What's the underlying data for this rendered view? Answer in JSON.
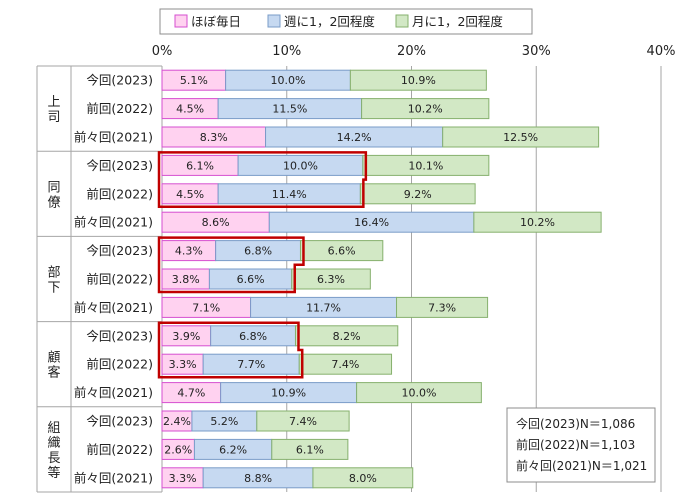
{
  "chart_data": {
    "type": "bar",
    "orientation": "horizontal",
    "stacked": true,
    "xlim": [
      0,
      40
    ],
    "x_ticks": [
      "0%",
      "10%",
      "20%",
      "30%",
      "40%"
    ],
    "grid": true,
    "legend_position": "top",
    "series": [
      {
        "name": "ほぼ毎日",
        "color": "#ffd2f0",
        "stroke": "#d64fd0"
      },
      {
        "name": "週に1，2回程度",
        "color": "#c6d9f1",
        "stroke": "#7a9cc8"
      },
      {
        "name": "月に1，2回程度",
        "color": "#d2e8c5",
        "stroke": "#86b06d"
      }
    ],
    "groups": [
      {
        "label": "上司",
        "rows": [
          {
            "label": "今回(2023)",
            "values": [
              5.1,
              10.0,
              10.9
            ]
          },
          {
            "label": "前回(2022)",
            "values": [
              4.5,
              11.5,
              10.2
            ]
          },
          {
            "label": "前々回(2021)",
            "values": [
              8.3,
              14.2,
              12.5
            ]
          }
        ]
      },
      {
        "label": "同僚",
        "rows": [
          {
            "label": "今回(2023)",
            "values": [
              6.1,
              10.0,
              10.1
            ]
          },
          {
            "label": "前回(2022)",
            "values": [
              4.5,
              11.4,
              9.2
            ]
          },
          {
            "label": "前々回(2021)",
            "values": [
              8.6,
              16.4,
              10.2
            ]
          }
        ]
      },
      {
        "label": "部下",
        "rows": [
          {
            "label": "今回(2023)",
            "values": [
              4.3,
              6.8,
              6.6
            ]
          },
          {
            "label": "前回(2022)",
            "values": [
              3.8,
              6.6,
              6.3
            ]
          },
          {
            "label": "前々回(2021)",
            "values": [
              7.1,
              11.7,
              7.3
            ]
          }
        ]
      },
      {
        "label": "顧客",
        "rows": [
          {
            "label": "今回(2023)",
            "values": [
              3.9,
              6.8,
              8.2
            ]
          },
          {
            "label": "前回(2022)",
            "values": [
              3.3,
              7.7,
              7.4
            ]
          },
          {
            "label": "前々回(2021)",
            "values": [
              4.7,
              10.9,
              10.0
            ]
          }
        ]
      },
      {
        "label": "組織長等",
        "rows": [
          {
            "label": "今回(2023)",
            "values": [
              2.4,
              5.2,
              7.4
            ]
          },
          {
            "label": "前回(2022)",
            "values": [
              2.6,
              6.2,
              6.1
            ]
          },
          {
            "label": "前々回(2021)",
            "values": [
              3.3,
              8.8,
              8.0
            ]
          }
        ]
      }
    ],
    "highlighted_groups": [
      "同僚",
      "部下",
      "顧客"
    ],
    "highlight_color": "#c00000",
    "notes": [
      "今回(2023)N＝1,086",
      "前回(2022)N＝1,103",
      "前々回(2021)N＝1,021"
    ]
  }
}
